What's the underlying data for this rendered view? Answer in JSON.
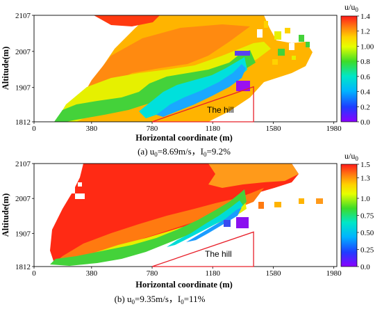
{
  "chart_data": [
    {
      "type": "heatmap",
      "panel_tag": "(a)",
      "caption": {
        "pre": "(a) u",
        "sub1": "0",
        "mid": "=8.69m/s，I",
        "sub2": "0",
        "post": "=9.2%"
      },
      "xlabel": "Horizontal coordinate (m)",
      "ylabel": "Altitude(m)",
      "x_ticks": [
        "0",
        "380",
        "780",
        "1180",
        "1580",
        "1980"
      ],
      "y_ticks": [
        "1812",
        "1907",
        "2007",
        "2107"
      ],
      "xlim": [
        0,
        2000
      ],
      "ylim": [
        1812,
        2107
      ],
      "colorbar": {
        "title_main": "u/u",
        "title_sub": "0",
        "ticks": [
          "0.0",
          "0.2",
          "0.4",
          "0.6",
          "0.8",
          "1.00",
          "1.2",
          "1.4"
        ],
        "range": [
          0,
          1.4
        ]
      },
      "annotation": "The hill",
      "hill_outline": {
        "x": [
          780,
          1450,
          1450
        ],
        "y": [
          1812,
          1909,
          1812
        ],
        "color": "#e8202a"
      },
      "field_description": {
        "left_boundary": {
          "x": [
            130,
            540,
            560
          ],
          "y": [
            1812,
            2040,
            2107
          ]
        },
        "speedup_max": 1.4,
        "wake_min": 0.0
      }
    },
    {
      "type": "heatmap",
      "panel_tag": "(b)",
      "caption": {
        "pre": "(b) u",
        "sub1": "0",
        "mid": "=9.35m/s，I",
        "sub2": "0",
        "post": "=11%"
      },
      "xlabel": "Horizontal coordinate (m)",
      "ylabel": "Altitude(m)",
      "x_ticks": [
        "0",
        "380",
        "780",
        "1180",
        "1580",
        "1980"
      ],
      "y_ticks": [
        "1812",
        "1907",
        "2007",
        "2107"
      ],
      "xlim": [
        0,
        2000
      ],
      "ylim": [
        1812,
        2107
      ],
      "colorbar": {
        "title_main": "u/u",
        "title_sub": "0",
        "ticks": [
          "0.0",
          "0.25",
          "0.50",
          "0.75",
          "1.0",
          "1.3",
          "1.5"
        ],
        "range": [
          0,
          1.5
        ]
      },
      "annotation": "The hill",
      "hill_outline": {
        "x": [
          780,
          1450,
          1450
        ],
        "y": [
          1812,
          1911,
          1812
        ],
        "color": "#e8202a"
      },
      "field_description": {
        "left_boundary": {
          "x": [
            130,
            430,
            520
          ],
          "y": [
            1812,
            2000,
            2107
          ]
        },
        "speedup_max": 1.5,
        "wake_min": 0.0
      }
    }
  ]
}
